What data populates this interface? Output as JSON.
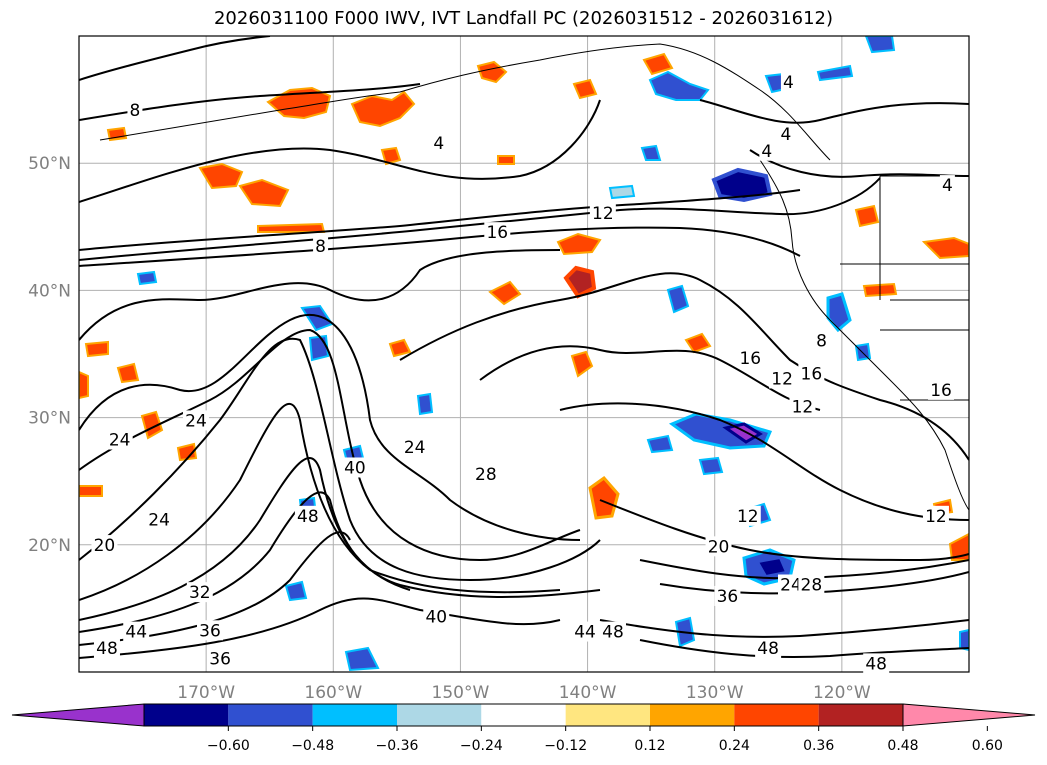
{
  "title": "2026031100 F000 IWV, IVT Landfall PC (2026031512 - 2026031612)",
  "map": {
    "lat_range": [
      10,
      60
    ],
    "lon_range": [
      -180,
      -110
    ],
    "lat_ticks": [
      {
        "value": 50,
        "label": "50°N"
      },
      {
        "value": 40,
        "label": "40°N"
      },
      {
        "value": 30,
        "label": "30°N"
      },
      {
        "value": 20,
        "label": "20°N"
      }
    ],
    "lon_ticks": [
      {
        "value": -170,
        "label": "170°W"
      },
      {
        "value": -160,
        "label": "160°W"
      },
      {
        "value": -150,
        "label": "150°W"
      },
      {
        "value": -140,
        "label": "140°W"
      },
      {
        "value": -130,
        "label": "130°W"
      },
      {
        "value": -120,
        "label": "120°W"
      }
    ],
    "contour_labels": [
      {
        "text": "8",
        "lon": -175.6,
        "lat": 54.1
      },
      {
        "text": "4",
        "lon": -151.7,
        "lat": 51.5
      },
      {
        "text": "4",
        "lon": -124.2,
        "lat": 56.3
      },
      {
        "text": "4",
        "lon": -124.4,
        "lat": 52.2
      },
      {
        "text": "4",
        "lon": -125.9,
        "lat": 50.9
      },
      {
        "text": "4",
        "lon": -111.7,
        "lat": 48.2
      },
      {
        "text": "12",
        "lon": -138.8,
        "lat": 46.0
      },
      {
        "text": "16",
        "lon": -147.1,
        "lat": 44.5
      },
      {
        "text": "8",
        "lon": -161.0,
        "lat": 43.4
      },
      {
        "text": "8",
        "lon": -121.6,
        "lat": 36.0
      },
      {
        "text": "16",
        "lon": -127.2,
        "lat": 34.6
      },
      {
        "text": "12",
        "lon": -124.7,
        "lat": 33.0
      },
      {
        "text": "16",
        "lon": -122.4,
        "lat": 33.4
      },
      {
        "text": "16",
        "lon": -112.2,
        "lat": 32.1
      },
      {
        "text": "12",
        "lon": -123.1,
        "lat": 30.8
      },
      {
        "text": "24",
        "lon": -170.8,
        "lat": 29.7
      },
      {
        "text": "24",
        "lon": -176.8,
        "lat": 28.2
      },
      {
        "text": "24",
        "lon": -153.6,
        "lat": 27.6
      },
      {
        "text": "28",
        "lon": -148.0,
        "lat": 25.5
      },
      {
        "text": "40",
        "lon": -158.3,
        "lat": 26.0
      },
      {
        "text": "48",
        "lon": -162.0,
        "lat": 22.2
      },
      {
        "text": "24",
        "lon": -173.7,
        "lat": 21.9
      },
      {
        "text": "20",
        "lon": -178.0,
        "lat": 19.9
      },
      {
        "text": "32",
        "lon": -170.5,
        "lat": 16.2
      },
      {
        "text": "40",
        "lon": -151.9,
        "lat": 14.3
      },
      {
        "text": "44",
        "lon": -175.5,
        "lat": 13.1
      },
      {
        "text": "48",
        "lon": -177.8,
        "lat": 11.8
      },
      {
        "text": "36",
        "lon": -169.7,
        "lat": 13.2
      },
      {
        "text": "36",
        "lon": -168.9,
        "lat": 11.0
      },
      {
        "text": "44",
        "lon": -140.2,
        "lat": 13.1
      },
      {
        "text": "48",
        "lon": -138.0,
        "lat": 13.1
      },
      {
        "text": "12",
        "lon": -127.4,
        "lat": 22.2
      },
      {
        "text": "12",
        "lon": -112.6,
        "lat": 22.2
      },
      {
        "text": "20",
        "lon": -129.7,
        "lat": 19.8
      },
      {
        "text": "24",
        "lon": -124.0,
        "lat": 16.8
      },
      {
        "text": "28",
        "lon": -122.4,
        "lat": 16.8
      },
      {
        "text": "36",
        "lon": -129.0,
        "lat": 15.9
      },
      {
        "text": "48",
        "lon": -125.8,
        "lat": 11.8
      },
      {
        "text": "48",
        "lon": -117.3,
        "lat": 10.6
      }
    ]
  },
  "colorbar": {
    "levels": [
      -0.72,
      -0.6,
      -0.48,
      -0.36,
      -0.24,
      -0.12,
      0.12,
      0.24,
      0.36,
      0.48,
      0.6,
      0.72
    ],
    "tick_labels": [
      "−0.60",
      "−0.48",
      "−0.36",
      "−0.24",
      "−0.12",
      "0.12",
      "0.24",
      "0.36",
      "0.48",
      "0.60"
    ],
    "colors": [
      "#9932cc",
      "#00008b",
      "#3050d0",
      "#00bfff",
      "#add8e6",
      "#ffffff",
      "#ffe680",
      "#ffa500",
      "#ff4500",
      "#b22222",
      "#ff88aa"
    ]
  },
  "colors": {
    "contour": "#000000",
    "grid": "#b0b0b0",
    "tick_text": "#808080",
    "frame": "#000000"
  }
}
